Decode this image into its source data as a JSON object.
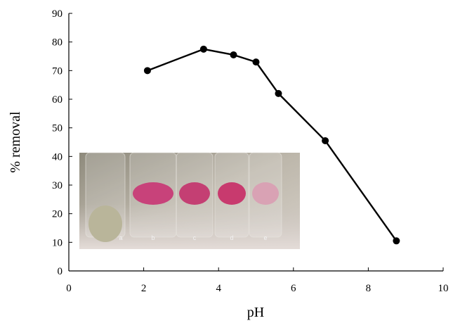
{
  "chart_data": {
    "type": "line",
    "xlabel": "pH",
    "ylabel": "% removal",
    "xlim": [
      0,
      10
    ],
    "ylim": [
      0,
      90
    ],
    "x_ticks": [
      0,
      2,
      4,
      6,
      8,
      10
    ],
    "y_ticks": [
      0,
      10,
      20,
      30,
      40,
      50,
      60,
      70,
      80,
      90
    ],
    "grid": false,
    "legend": "none",
    "series": [
      {
        "color": "#000000",
        "marker": "circle",
        "x": [
          2.1,
          3.6,
          4.4,
          5.0,
          5.6,
          6.85,
          8.75
        ],
        "y": [
          70,
          77.5,
          75.5,
          73,
          62,
          45.5,
          10.5
        ]
      }
    ],
    "inset_photo": {
      "description_icon": "sample-tubes-photo",
      "tube_labels": [
        "a",
        "b",
        "c",
        "d",
        "e"
      ],
      "tube_colors": [
        "#b9b59a",
        "#c8427a",
        "#c43f73",
        "#c83a6e",
        "#d9a2b4"
      ]
    }
  }
}
